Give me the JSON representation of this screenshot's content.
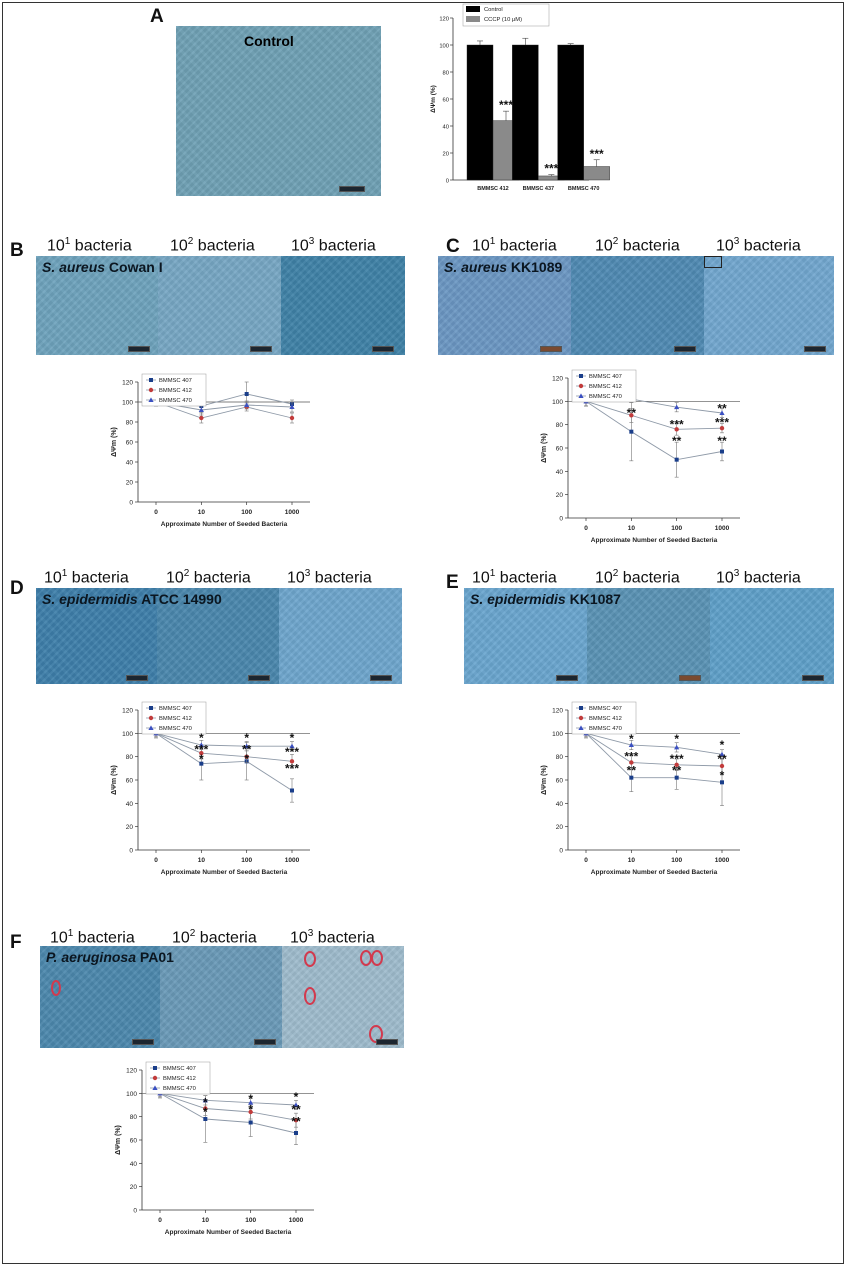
{
  "panels": {
    "A": {
      "label": "A",
      "image_title": "Control"
    },
    "B": {
      "label": "B",
      "organism_italic": "S. aureus",
      "organism_strain": " Cowan I"
    },
    "C": {
      "label": "C",
      "organism_italic": "S. aureus",
      "organism_strain": " KK1089"
    },
    "D": {
      "label": "D",
      "organism_italic": "S. epidermidis",
      "organism_strain": " ATCC 14990"
    },
    "E": {
      "label": "E",
      "organism_italic": "S. epidermidis",
      "organism_strain": " KK1087"
    },
    "F": {
      "label": "F",
      "organism_italic": "P. aeruginosa",
      "organism_strain": " PA01"
    }
  },
  "bacteria_labels": {
    "b1_base": "10",
    "b1_sup": "1",
    "b1_rest": " bacteria",
    "b2_base": "10",
    "b2_sup": "2",
    "b2_rest": " bacteria",
    "b3_base": "10",
    "b3_sup": "3",
    "b3_rest": " bacteria"
  },
  "colors": {
    "bmmsc407": "#1a3e8a",
    "bmmsc412": "#c23b3b",
    "bmmsc470": "#3b50c2",
    "control_bar": "#000000",
    "cccp_bar": "#8a8a8a",
    "micrograph_blue": "#5f93ad"
  },
  "chart_data": [
    {
      "panel": "A",
      "type": "bar",
      "categories": [
        "BMMSC 412",
        "BMMSC 437",
        "BMMSC 470"
      ],
      "series": [
        {
          "name": "Control",
          "values": [
            100,
            100,
            100
          ],
          "errors": [
            3,
            5,
            1
          ]
        },
        {
          "name": "CCCP (10 μM)",
          "values": [
            44,
            3,
            10
          ],
          "errors": [
            7,
            1,
            5
          ]
        }
      ],
      "annotations": [
        "***",
        "***",
        "***"
      ],
      "ylabel": "ΔΨm (%)",
      "yticks": [
        "0",
        "20",
        "40",
        "60",
        "80",
        "100",
        "120"
      ],
      "ylim": [
        0,
        120
      ]
    },
    {
      "panel": "B",
      "type": "line",
      "x": [
        "0",
        "10",
        "100",
        "1000"
      ],
      "series": [
        {
          "name": "BMMSC 407",
          "values": [
            100,
            96,
            108,
            98
          ],
          "errors": [
            4,
            6,
            12,
            4
          ]
        },
        {
          "name": "BMMSC 412",
          "values": [
            100,
            84,
            95,
            84
          ],
          "errors": [
            3,
            5,
            4,
            5
          ]
        },
        {
          "name": "BMMSC 470",
          "values": [
            100,
            92,
            97,
            95
          ],
          "errors": [
            4,
            5,
            4,
            5
          ]
        }
      ],
      "annotations": [],
      "xlabel": "Approximate Number of Seeded Bacteria",
      "ylabel": "ΔΨm (%)",
      "yticks": [
        "0",
        "20",
        "40",
        "60",
        "80",
        "100",
        "120"
      ],
      "ylim": [
        0,
        120
      ]
    },
    {
      "panel": "C",
      "type": "line",
      "x": [
        "0",
        "10",
        "100",
        "1000"
      ],
      "series": [
        {
          "name": "BMMSC 407",
          "values": [
            100,
            74,
            50,
            57
          ],
          "errors": [
            4,
            25,
            15,
            8
          ]
        },
        {
          "name": "BMMSC 412",
          "values": [
            100,
            88,
            76,
            77
          ],
          "errors": [
            4,
            6,
            5,
            4
          ]
        },
        {
          "name": "BMMSC 470",
          "values": [
            100,
            102,
            95,
            90
          ],
          "errors": [
            4,
            3,
            4,
            4
          ]
        }
      ],
      "annotations": [
        {
          "text": "**",
          "x": "10",
          "y": 90
        },
        {
          "text": "***",
          "x": "100",
          "y": 80
        },
        {
          "text": "**",
          "x": "100",
          "y": 66
        },
        {
          "text": "**",
          "x": "1000",
          "y": 94
        },
        {
          "text": "***",
          "x": "1000",
          "y": 82
        },
        {
          "text": "**",
          "x": "1000",
          "y": 66
        }
      ],
      "xlabel": "Approximate Number of Seeded Bacteria",
      "ylabel": "ΔΨm (%)",
      "yticks": [
        "0",
        "20",
        "40",
        "60",
        "80",
        "100",
        "120"
      ],
      "ylim": [
        0,
        120
      ]
    },
    {
      "panel": "D",
      "type": "line",
      "x": [
        "0",
        "10",
        "100",
        "1000"
      ],
      "series": [
        {
          "name": "BMMSC 407",
          "values": [
            100,
            74,
            76,
            51
          ],
          "errors": [
            4,
            14,
            16,
            10
          ]
        },
        {
          "name": "BMMSC 412",
          "values": [
            100,
            83,
            80,
            76
          ],
          "errors": [
            3,
            5,
            5,
            6
          ]
        },
        {
          "name": "BMMSC 470",
          "values": [
            100,
            90,
            89,
            89
          ],
          "errors": [
            3,
            4,
            4,
            4
          ]
        }
      ],
      "annotations": [
        {
          "text": "*",
          "x": "10",
          "y": 96
        },
        {
          "text": "***",
          "x": "10",
          "y": 86
        },
        {
          "text": "*",
          "x": "10",
          "y": 78
        },
        {
          "text": "*",
          "x": "100",
          "y": 96
        },
        {
          "text": "**",
          "x": "100",
          "y": 86
        },
        {
          "text": "*",
          "x": "100",
          "y": 78
        },
        {
          "text": "*",
          "x": "1000",
          "y": 96
        },
        {
          "text": "***",
          "x": "1000",
          "y": 84
        },
        {
          "text": "***",
          "x": "1000",
          "y": 70
        }
      ],
      "xlabel": "Approximate Number of Seeded Bacteria",
      "ylabel": "ΔΨm (%)",
      "yticks": [
        "0",
        "20",
        "40",
        "60",
        "80",
        "100",
        "120"
      ],
      "ylim": [
        0,
        120
      ]
    },
    {
      "panel": "E",
      "type": "line",
      "x": [
        "0",
        "10",
        "100",
        "1000"
      ],
      "series": [
        {
          "name": "BMMSC 407",
          "values": [
            100,
            62,
            62,
            58
          ],
          "errors": [
            4,
            12,
            10,
            20
          ]
        },
        {
          "name": "BMMSC 412",
          "values": [
            100,
            75,
            73,
            72
          ],
          "errors": [
            3,
            6,
            5,
            6
          ]
        },
        {
          "name": "BMMSC 470",
          "values": [
            100,
            90,
            88,
            82
          ],
          "errors": [
            3,
            4,
            4,
            4
          ]
        }
      ],
      "annotations": [
        {
          "text": "*",
          "x": "10",
          "y": 95
        },
        {
          "text": "***",
          "x": "10",
          "y": 80
        },
        {
          "text": "**",
          "x": "10",
          "y": 68
        },
        {
          "text": "*",
          "x": "100",
          "y": 95
        },
        {
          "text": "***",
          "x": "100",
          "y": 78
        },
        {
          "text": "**",
          "x": "100",
          "y": 68
        },
        {
          "text": "*",
          "x": "1000",
          "y": 90
        },
        {
          "text": "**",
          "x": "1000",
          "y": 78
        },
        {
          "text": "*",
          "x": "1000",
          "y": 64
        }
      ],
      "xlabel": "Approximate Number of Seeded Bacteria",
      "ylabel": "ΔΨm (%)",
      "yticks": [
        "0",
        "20",
        "40",
        "60",
        "80",
        "100",
        "120"
      ],
      "ylim": [
        0,
        120
      ]
    },
    {
      "panel": "F",
      "type": "line",
      "x": [
        "0",
        "10",
        "100",
        "1000"
      ],
      "series": [
        {
          "name": "BMMSC 407",
          "values": [
            100,
            78,
            75,
            66
          ],
          "errors": [
            4,
            20,
            12,
            10
          ]
        },
        {
          "name": "BMMSC 412",
          "values": [
            100,
            87,
            84,
            77
          ],
          "errors": [
            3,
            6,
            6,
            6
          ]
        },
        {
          "name": "BMMSC 470",
          "values": [
            100,
            94,
            92,
            90
          ],
          "errors": [
            3,
            4,
            4,
            4
          ]
        }
      ],
      "annotations": [
        {
          "text": "*",
          "x": "10",
          "y": 92
        },
        {
          "text": "*",
          "x": "10",
          "y": 84
        },
        {
          "text": "*",
          "x": "100",
          "y": 95
        },
        {
          "text": "*",
          "x": "100",
          "y": 86
        },
        {
          "text": "*",
          "x": "1000",
          "y": 97
        },
        {
          "text": "**",
          "x": "1000",
          "y": 86
        },
        {
          "text": "**",
          "x": "1000",
          "y": 76
        }
      ],
      "xlabel": "Approximate Number of Seeded Bacteria",
      "ylabel": "ΔΨm (%)",
      "yticks": [
        "0",
        "20",
        "40",
        "60",
        "80",
        "100",
        "120"
      ],
      "ylim": [
        0,
        120
      ]
    }
  ]
}
